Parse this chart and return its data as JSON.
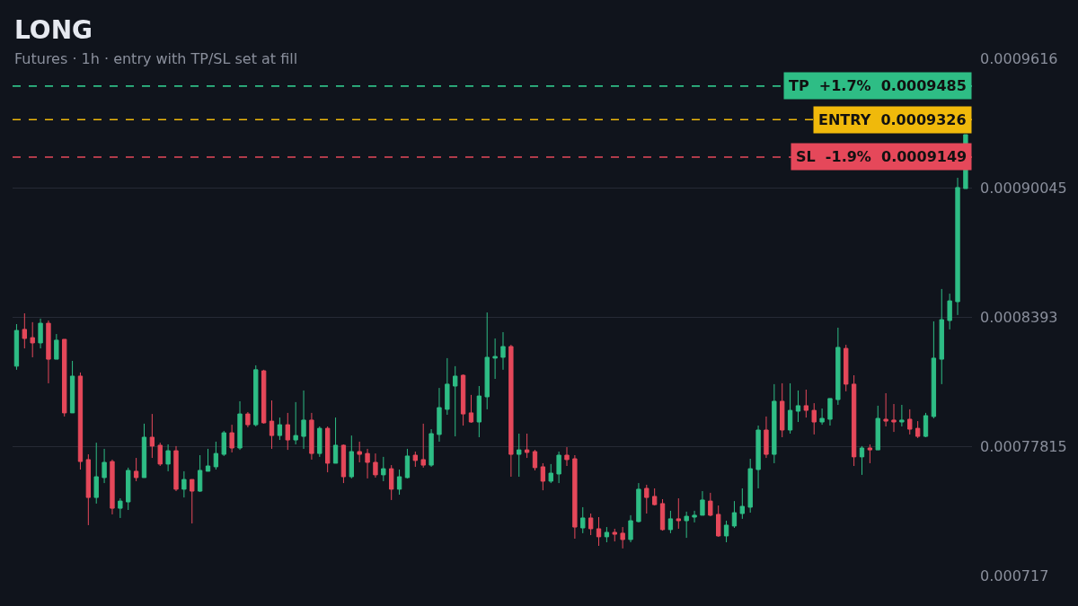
{
  "chart_data": {
    "type": "candlestick",
    "title": "LONG",
    "subtitle": "Futures · 1h · entry with TP/SL set at fill",
    "categories": [
      null,
      null,
      null,
      null,
      null,
      null,
      null,
      null,
      null,
      null,
      null,
      null,
      null,
      null,
      null,
      null,
      null,
      null,
      null,
      null,
      null,
      null,
      null,
      null,
      null,
      null,
      null,
      null,
      null,
      null,
      null,
      null,
      null,
      null,
      null,
      null,
      null,
      null,
      null,
      null,
      null,
      null,
      null,
      null,
      null,
      null,
      null,
      null,
      null,
      null,
      null,
      null,
      null,
      null,
      null,
      null,
      null,
      null,
      null,
      null,
      null,
      null,
      null,
      null,
      null,
      null,
      null,
      null,
      null,
      null,
      null,
      null,
      null,
      null,
      null,
      null,
      null,
      null,
      null,
      null,
      null,
      null,
      null,
      null,
      null,
      null,
      null,
      null,
      null,
      null,
      null,
      null,
      null,
      null,
      null,
      null,
      null,
      null,
      null,
      null,
      null,
      null,
      null,
      null,
      null,
      null,
      null,
      null,
      null,
      null,
      null,
      null,
      null,
      null,
      null,
      null,
      null,
      null,
      null,
      null
    ],
    "ohlc": [
      [
        0.000816,
        0.0008359,
        0.0008143,
        0.0008329
      ],
      [
        0.0008334,
        0.000841,
        0.0008244,
        0.0008291
      ],
      [
        0.0008295,
        0.0008368,
        0.0008202,
        0.000827
      ],
      [
        0.000827,
        0.0008385,
        0.0008244,
        0.0008363
      ],
      [
        0.0008363,
        0.0008376,
        0.0008079,
        0.0008193
      ],
      [
        0.0008193,
        0.0008312,
        0.0008193,
        0.0008283
      ],
      [
        0.0008287,
        0.0008287,
        0.0007922,
        0.0007939
      ],
      [
        0.0007939,
        0.0008185,
        0.0007939,
        0.0008113
      ],
      [
        0.0008113,
        0.000813,
        0.0007671,
        0.0007709
      ],
      [
        0.0007718,
        0.0007743,
        0.0007408,
        0.0007539
      ],
      [
        0.0007539,
        0.0007798,
        0.000751,
        0.0007637
      ],
      [
        0.0007633,
        0.0007769,
        0.0007607,
        0.0007705
      ],
      [
        0.0007709,
        0.0007718,
        0.0007459,
        0.0007488
      ],
      [
        0.0007488,
        0.0007535,
        0.0007442,
        0.0007522
      ],
      [
        0.0007518,
        0.000768,
        0.000748,
        0.0007667
      ],
      [
        0.0007663,
        0.0007726,
        0.0007616,
        0.0007633
      ],
      [
        0.0007633,
        0.0007888,
        0.0007633,
        0.0007824
      ],
      [
        0.0007824,
        0.0007934,
        0.0007726,
        0.0007782
      ],
      [
        0.0007786,
        0.0007798,
        0.0007688,
        0.0007697
      ],
      [
        0.0007697,
        0.000779,
        0.0007663,
        0.000776
      ],
      [
        0.000776,
        0.0007782,
        0.0007569,
        0.0007578
      ],
      [
        0.0007578,
        0.0007663,
        0.0007539,
        0.0007624
      ],
      [
        0.0007624,
        0.0007624,
        0.0007416,
        0.0007569
      ],
      [
        0.0007569,
        0.0007739,
        0.0007565,
        0.0007667
      ],
      [
        0.0007663,
        0.0007769,
        0.0007663,
        0.0007688
      ],
      [
        0.0007684,
        0.0007803,
        0.0007671,
        0.0007747
      ],
      [
        0.0007743,
        0.0007854,
        0.0007735,
        0.0007845
      ],
      [
        0.0007845,
        0.0007883,
        0.0007752,
        0.0007773
      ],
      [
        0.0007773,
        0.0007994,
        0.0007764,
        0.0007934
      ],
      [
        0.0007934,
        0.0007943,
        0.0007871,
        0.0007883
      ],
      [
        0.0007883,
        0.0008164,
        0.0007875,
        0.0008143
      ],
      [
        0.0008138,
        0.0008143,
        0.0007888,
        0.0007892
      ],
      [
        0.00079,
        0.0007998,
        0.0007769,
        0.0007832
      ],
      [
        0.0007832,
        0.0007917,
        0.0007811,
        0.0007883
      ],
      [
        0.0007883,
        0.0007939,
        0.0007764,
        0.0007811
      ],
      [
        0.0007811,
        0.000799,
        0.000779,
        0.0007832
      ],
      [
        0.0007828,
        0.0008045,
        0.0007769,
        0.0007905
      ],
      [
        0.0007905,
        0.0007939,
        0.0007718,
        0.0007747
      ],
      [
        0.0007747,
        0.0007875,
        0.0007731,
        0.0007866
      ],
      [
        0.0007866,
        0.0007875,
        0.0007658,
        0.0007701
      ],
      [
        0.0007701,
        0.0007917,
        0.0007701,
        0.0007786
      ],
      [
        0.0007786,
        0.000779,
        0.0007607,
        0.0007637
      ],
      [
        0.0007637,
        0.0007832,
        0.0007629,
        0.0007756
      ],
      [
        0.0007756,
        0.0007803,
        0.0007705,
        0.0007743
      ],
      [
        0.0007747,
        0.0007769,
        0.0007629,
        0.0007705
      ],
      [
        0.0007705,
        0.0007747,
        0.0007633,
        0.0007646
      ],
      [
        0.0007646,
        0.0007731,
        0.0007616,
        0.0007675
      ],
      [
        0.0007675,
        0.0007692,
        0.0007527,
        0.0007578
      ],
      [
        0.0007578,
        0.0007671,
        0.0007552,
        0.0007637
      ],
      [
        0.0007633,
        0.0007769,
        0.0007629,
        0.0007735
      ],
      [
        0.0007739,
        0.0007756,
        0.0007684,
        0.0007714
      ],
      [
        0.0007718,
        0.0007888,
        0.000768,
        0.0007692
      ],
      [
        0.0007692,
        0.0007862,
        0.0007684,
        0.0007841
      ],
      [
        0.0007837,
        0.0008057,
        0.0007803,
        0.0007964
      ],
      [
        0.0007956,
        0.0008198,
        0.000793,
        0.0008075
      ],
      [
        0.0008066,
        0.000816,
        0.0007828,
        0.0008113
      ],
      [
        0.0008117,
        0.0008121,
        0.0007879,
        0.0007934
      ],
      [
        0.0007939,
        0.0008024,
        0.0007892,
        0.0007896
      ],
      [
        0.0007896,
        0.0008066,
        0.0007824,
        0.0008019
      ],
      [
        0.0008015,
        0.0008414,
        0.0007956,
        0.0008202
      ],
      [
        0.0008198,
        0.0008291,
        0.00081,
        0.0008206
      ],
      [
        0.0008202,
        0.0008321,
        0.0008143,
        0.0008253
      ],
      [
        0.0008253,
        0.0008261,
        0.0007637,
        0.0007743
      ],
      [
        0.0007743,
        0.0007841,
        0.0007637,
        0.0007764
      ],
      [
        0.0007764,
        0.0007841,
        0.0007726,
        0.0007752
      ],
      [
        0.0007756,
        0.0007764,
        0.0007667,
        0.000768
      ],
      [
        0.0007684,
        0.0007701,
        0.0007573,
        0.0007616
      ],
      [
        0.0007616,
        0.0007697,
        0.0007607,
        0.0007654
      ],
      [
        0.000765,
        0.0007756,
        0.0007607,
        0.0007739
      ],
      [
        0.0007739,
        0.0007777,
        0.0007688,
        0.0007718
      ],
      [
        0.0007722,
        0.0007739,
        0.0007344,
        0.0007399
      ],
      [
        0.0007395,
        0.0007493,
        0.000737,
        0.0007442
      ],
      [
        0.0007442,
        0.0007463,
        0.0007361,
        0.0007391
      ],
      [
        0.0007391,
        0.0007446,
        0.000731,
        0.0007353
      ],
      [
        0.0007353,
        0.0007399,
        0.0007327,
        0.0007374
      ],
      [
        0.0007374,
        0.0007391,
        0.0007331,
        0.0007365
      ],
      [
        0.000737,
        0.0007399,
        0.0007298,
        0.000734
      ],
      [
        0.000734,
        0.0007455,
        0.0007327,
        0.0007429
      ],
      [
        0.0007425,
        0.0007607,
        0.0007421,
        0.0007578
      ],
      [
        0.0007582,
        0.0007599,
        0.0007463,
        0.0007539
      ],
      [
        0.0007544,
        0.0007582,
        0.0007501,
        0.0007505
      ],
      [
        0.000751,
        0.0007531,
        0.0007382,
        0.0007387
      ],
      [
        0.0007387,
        0.0007476,
        0.000737,
        0.0007438
      ],
      [
        0.0007438,
        0.0007535,
        0.0007391,
        0.0007429
      ],
      [
        0.0007429,
        0.0007472,
        0.0007348,
        0.000745
      ],
      [
        0.0007446,
        0.0007476,
        0.0007421,
        0.0007455
      ],
      [
        0.0007455,
        0.0007569,
        0.0007455,
        0.0007527
      ],
      [
        0.0007522,
        0.0007561,
        0.000745,
        0.0007455
      ],
      [
        0.0007459,
        0.0007501,
        0.0007353,
        0.0007357
      ],
      [
        0.0007357,
        0.0007429,
        0.0007327,
        0.0007408
      ],
      [
        0.0007404,
        0.0007522,
        0.0007395,
        0.0007467
      ],
      [
        0.0007463,
        0.0007582,
        0.0007438,
        0.0007497
      ],
      [
        0.0007493,
        0.0007722,
        0.0007467,
        0.0007675
      ],
      [
        0.0007671,
        0.0007879,
        0.0007582,
        0.0007858
      ],
      [
        0.0007858,
        0.0007922,
        0.0007726,
        0.0007743
      ],
      [
        0.0007743,
        0.0008075,
        0.0007701,
        0.0007994
      ],
      [
        0.0007994,
        0.0008079,
        0.0007824,
        0.0007858
      ],
      [
        0.0007858,
        0.0008079,
        0.0007841,
        0.0007951
      ],
      [
        0.0007947,
        0.0008045,
        0.0007896,
        0.0007973
      ],
      [
        0.0007973,
        0.0008049,
        0.0007917,
        0.0007951
      ],
      [
        0.0007951,
        0.0007985,
        0.0007837,
        0.0007896
      ],
      [
        0.0007896,
        0.000796,
        0.0007883,
        0.0007913
      ],
      [
        0.0007909,
        0.0008007,
        0.0007879,
        0.0008007
      ],
      [
        0.0008002,
        0.0008342,
        0.0007977,
        0.0008249
      ],
      [
        0.0008244,
        0.0008261,
        0.0008041,
        0.0008075
      ],
      [
        0.0008075,
        0.0008117,
        0.0007688,
        0.0007731
      ],
      [
        0.0007731,
        0.0007782,
        0.0007646,
        0.0007773
      ],
      [
        0.0007773,
        0.000779,
        0.0007701,
        0.0007764
      ],
      [
        0.0007764,
        0.0007973,
        0.0007764,
        0.0007913
      ],
      [
        0.0007909,
        0.0008032,
        0.0007875,
        0.00079
      ],
      [
        0.0007905,
        0.0007981,
        0.0007849,
        0.0007896
      ],
      [
        0.0007896,
        0.0007977,
        0.0007875,
        0.0007905
      ],
      [
        0.0007909,
        0.0007956,
        0.0007837,
        0.0007862
      ],
      [
        0.0007866,
        0.00079,
        0.000782,
        0.0007828
      ],
      [
        0.0007828,
        0.0007939,
        0.0007824,
        0.0007926
      ],
      [
        0.0007922,
        0.0008372,
        0.0007913,
        0.0008198
      ],
      [
        0.0008193,
        0.0008525,
        0.0008075,
        0.000838
      ],
      [
        0.0008376,
        0.0008503,
        0.0008334,
        0.0008469
      ],
      [
        0.0008465,
        0.0009051,
        0.0008402,
        0.0009005
      ],
      [
        0.0009,
        0.0009255,
        0.0009,
        0.0009255
      ]
    ],
    "colors": [
      "#2ebd85",
      "#e5485a",
      "#e5485a",
      "#2ebd85",
      "#e5485a",
      "#2ebd85",
      "#e5485a",
      "#2ebd85",
      "#e5485a",
      "#e5485a",
      "#2ebd85",
      "#2ebd85",
      "#e5485a",
      "#2ebd85",
      "#2ebd85",
      "#e5485a",
      "#2ebd85",
      "#e5485a",
      "#e5485a",
      "#2ebd85",
      "#e5485a",
      "#2ebd85",
      "#e5485a",
      "#2ebd85",
      "#2ebd85",
      "#2ebd85",
      "#2ebd85",
      "#e5485a",
      "#2ebd85",
      "#e5485a",
      "#2ebd85",
      "#e5485a",
      "#e5485a",
      "#2ebd85",
      "#e5485a",
      "#2ebd85",
      "#2ebd85",
      "#e5485a",
      "#2ebd85",
      "#e5485a",
      "#2ebd85",
      "#e5485a",
      "#2ebd85",
      "#e5485a",
      "#e5485a",
      "#e5485a",
      "#2ebd85",
      "#e5485a",
      "#2ebd85",
      "#2ebd85",
      "#e5485a",
      "#e5485a",
      "#2ebd85",
      "#2ebd85",
      "#2ebd85",
      "#2ebd85",
      "#e5485a",
      "#e5485a",
      "#2ebd85",
      "#2ebd85",
      "#2ebd85",
      "#2ebd85",
      "#e5485a",
      "#2ebd85",
      "#e5485a",
      "#e5485a",
      "#e5485a",
      "#2ebd85",
      "#2ebd85",
      "#e5485a",
      "#e5485a",
      "#2ebd85",
      "#e5485a",
      "#e5485a",
      "#2ebd85",
      "#e5485a",
      "#e5485a",
      "#2ebd85",
      "#2ebd85",
      "#e5485a",
      "#e5485a",
      "#e5485a",
      "#2ebd85",
      "#e5485a",
      "#2ebd85",
      "#2ebd85",
      "#2ebd85",
      "#e5485a",
      "#e5485a",
      "#2ebd85",
      "#2ebd85",
      "#2ebd85",
      "#2ebd85",
      "#2ebd85",
      "#e5485a",
      "#2ebd85",
      "#e5485a",
      "#2ebd85",
      "#2ebd85",
      "#e5485a",
      "#e5485a",
      "#2ebd85",
      "#2ebd85",
      "#2ebd85",
      "#e5485a",
      "#e5485a",
      "#2ebd85",
      "#e5485a",
      "#2ebd85",
      "#e5485a",
      "#e5485a",
      "#2ebd85",
      "#e5485a",
      "#e5485a",
      "#2ebd85",
      "#2ebd85",
      "#2ebd85",
      "#2ebd85",
      "#2ebd85",
      "#2ebd85"
    ],
    "ylim": [
      0.000717,
      0.0009616
    ],
    "yticks": [
      0.000717,
      0.00077815,
      0.0008393,
      0.00090045,
      0.0009616
    ],
    "grid": "y",
    "legend": false,
    "tick_labels": "y",
    "ref_lines": [
      {
        "axis": "y",
        "value": 0.0009485,
        "label": "TP  +1.7%  0.0009485",
        "color": "#2ebd85",
        "line_style": "dashed"
      },
      {
        "axis": "y",
        "value": 0.0009326,
        "label": "ENTRY  0.0009326",
        "color": "#f0b90b",
        "line_style": "dashed"
      },
      {
        "axis": "y",
        "value": 0.0009149,
        "label": "SL  -1.9%  0.0009149",
        "color": "#e5485a",
        "line_style": "dashed"
      }
    ]
  }
}
